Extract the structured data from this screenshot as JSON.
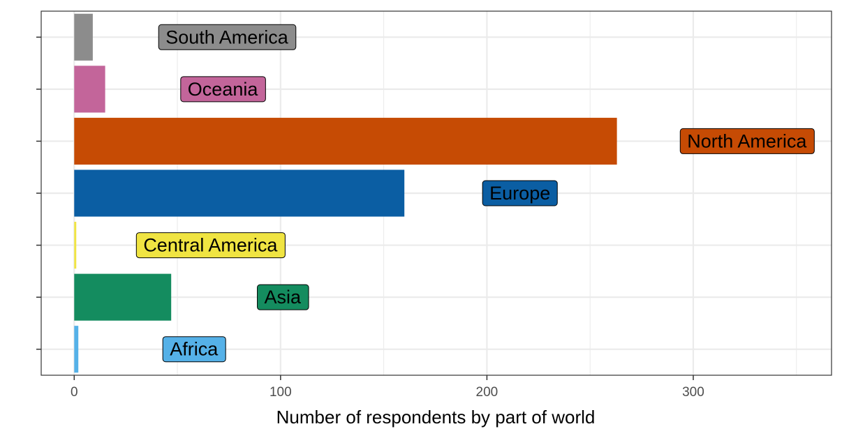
{
  "chart_data": {
    "type": "bar",
    "orientation": "horizontal",
    "xlabel": "Number of respondents by part of world",
    "ylabel": "",
    "xlim": [
      -16,
      367
    ],
    "x_ticks": [
      0,
      100,
      200,
      300
    ],
    "grid": true,
    "legend": "none",
    "categories": [
      "South America",
      "Oceania",
      "North America",
      "Europe",
      "Central America",
      "Asia",
      "Africa"
    ],
    "values": [
      9,
      15,
      263,
      160,
      1,
      47,
      2
    ],
    "label_positions": [
      74,
      72,
      326,
      216,
      66,
      101,
      58
    ],
    "colors": [
      "#8c8c8c",
      "#c3659a",
      "#c64b04",
      "#0b5ea3",
      "#f0e442",
      "#148c5f",
      "#55b1e8"
    ]
  }
}
